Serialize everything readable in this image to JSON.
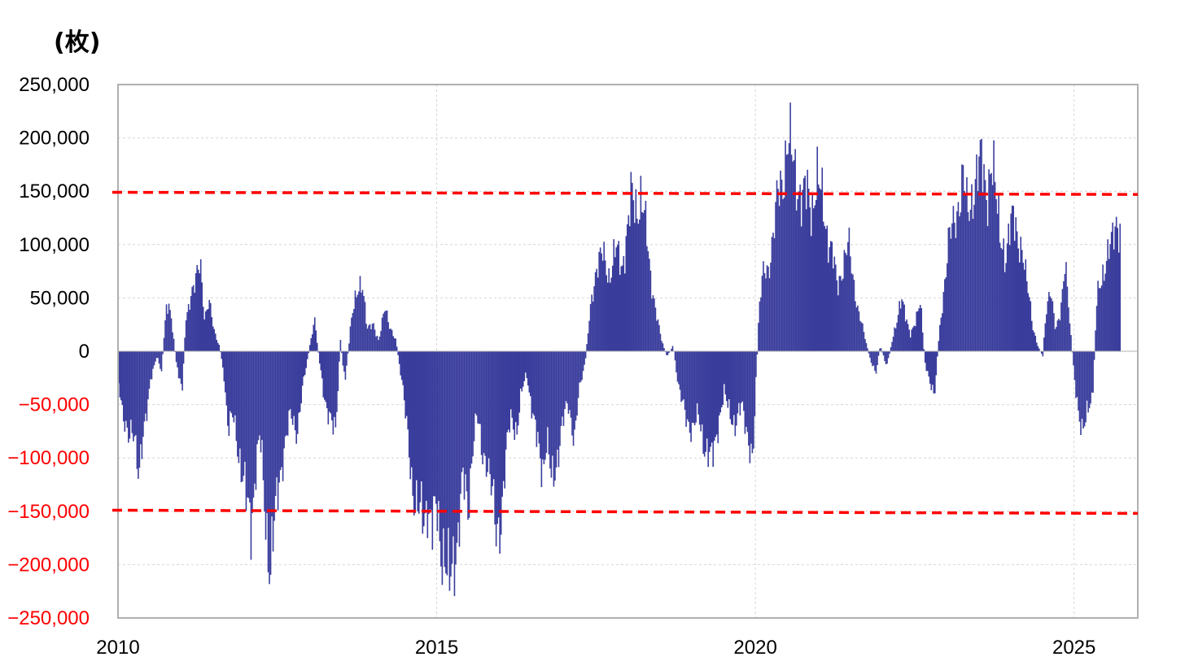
{
  "chart_data": {
    "type": "bar",
    "unit_label": "(枚)",
    "xlim": [
      2010.0,
      2026.0
    ],
    "ylim": [
      -250000,
      250000
    ],
    "x_ticks": [
      2010,
      2015,
      2020,
      2025
    ],
    "x_tick_labels": [
      "2010",
      "2015",
      "2020",
      "2025"
    ],
    "y_ticks": [
      250000,
      200000,
      150000,
      100000,
      50000,
      0,
      -50000,
      -100000,
      -150000,
      -200000,
      -250000
    ],
    "y_tick_labels": [
      "250,000",
      "200,000",
      "150,000",
      "100,000",
      "50,000",
      "0",
      "−50,000",
      "−100,000",
      "−150,000",
      "−200,000",
      "−250,000"
    ],
    "grid": true,
    "bar_color": "#3a3d9c",
    "positive_label_color": "#000000",
    "negative_label_color": "#ff0000",
    "reference_line_color": "#ff0000",
    "reference_lines": [
      {
        "y_start": 149000,
        "y_end": 147000
      },
      {
        "y_start": -149000,
        "y_end": -152000
      }
    ],
    "points": [
      [
        2010.0,
        -30000
      ],
      [
        2010.08,
        -60000
      ],
      [
        2010.15,
        -85000
      ],
      [
        2010.25,
        -75000
      ],
      [
        2010.32,
        -112000
      ],
      [
        2010.42,
        -70000
      ],
      [
        2010.5,
        -25000
      ],
      [
        2010.6,
        -5000
      ],
      [
        2010.67,
        -20000
      ],
      [
        2010.75,
        40000
      ],
      [
        2010.82,
        38000
      ],
      [
        2010.9,
        -10000
      ],
      [
        2011.0,
        -35000
      ],
      [
        2011.05,
        30000
      ],
      [
        2011.12,
        50000
      ],
      [
        2011.2,
        60000
      ],
      [
        2011.28,
        90000
      ],
      [
        2011.35,
        30000
      ],
      [
        2011.42,
        45000
      ],
      [
        2011.5,
        20000
      ],
      [
        2011.58,
        5000
      ],
      [
        2011.65,
        -20000
      ],
      [
        2011.72,
        -75000
      ],
      [
        2011.8,
        -60000
      ],
      [
        2011.9,
        -100000
      ],
      [
        2012.0,
        -140000
      ],
      [
        2012.08,
        -160000
      ],
      [
        2012.15,
        -110000
      ],
      [
        2012.22,
        -80000
      ],
      [
        2012.3,
        -150000
      ],
      [
        2012.38,
        -205000
      ],
      [
        2012.45,
        -160000
      ],
      [
        2012.52,
        -120000
      ],
      [
        2012.6,
        -90000
      ],
      [
        2012.7,
        -60000
      ],
      [
        2012.8,
        -75000
      ],
      [
        2012.9,
        -30000
      ],
      [
        2013.0,
        5000
      ],
      [
        2013.08,
        30000
      ],
      [
        2013.15,
        -10000
      ],
      [
        2013.22,
        -40000
      ],
      [
        2013.3,
        -60000
      ],
      [
        2013.4,
        -80000
      ],
      [
        2013.48,
        10000
      ],
      [
        2013.55,
        -30000
      ],
      [
        2013.65,
        30000
      ],
      [
        2013.75,
        55000
      ],
      [
        2013.82,
        70000
      ],
      [
        2013.9,
        20000
      ],
      [
        2014.0,
        25000
      ],
      [
        2014.08,
        10000
      ],
      [
        2014.18,
        40000
      ],
      [
        2014.25,
        25000
      ],
      [
        2014.35,
        10000
      ],
      [
        2014.45,
        -30000
      ],
      [
        2014.55,
        -90000
      ],
      [
        2014.62,
        -130000
      ],
      [
        2014.7,
        -150000
      ],
      [
        2014.78,
        -160000
      ],
      [
        2014.85,
        -140000
      ],
      [
        2014.92,
        -165000
      ],
      [
        2015.0,
        -150000
      ],
      [
        2015.05,
        -180000
      ],
      [
        2015.12,
        -190000
      ],
      [
        2015.18,
        -225000
      ],
      [
        2015.25,
        -200000
      ],
      [
        2015.32,
        -170000
      ],
      [
        2015.4,
        -120000
      ],
      [
        2015.48,
        -150000
      ],
      [
        2015.55,
        -90000
      ],
      [
        2015.62,
        -60000
      ],
      [
        2015.7,
        -95000
      ],
      [
        2015.78,
        -100000
      ],
      [
        2015.85,
        -130000
      ],
      [
        2015.92,
        -170000
      ],
      [
        2016.0,
        -155000
      ],
      [
        2016.08,
        -100000
      ],
      [
        2016.15,
        -60000
      ],
      [
        2016.25,
        -75000
      ],
      [
        2016.32,
        -40000
      ],
      [
        2016.4,
        -20000
      ],
      [
        2016.5,
        -60000
      ],
      [
        2016.58,
        -90000
      ],
      [
        2016.65,
        -110000
      ],
      [
        2016.72,
        -80000
      ],
      [
        2016.8,
        -130000
      ],
      [
        2016.88,
        -100000
      ],
      [
        2016.95,
        -70000
      ],
      [
        2017.05,
        -50000
      ],
      [
        2017.15,
        -80000
      ],
      [
        2017.22,
        -40000
      ],
      [
        2017.32,
        -10000
      ],
      [
        2017.42,
        50000
      ],
      [
        2017.5,
        80000
      ],
      [
        2017.6,
        90000
      ],
      [
        2017.7,
        70000
      ],
      [
        2017.8,
        95000
      ],
      [
        2017.9,
        80000
      ],
      [
        2018.0,
        120000
      ],
      [
        2018.05,
        145000
      ],
      [
        2018.12,
        135000
      ],
      [
        2018.2,
        145000
      ],
      [
        2018.28,
        110000
      ],
      [
        2018.35,
        70000
      ],
      [
        2018.45,
        30000
      ],
      [
        2018.52,
        10000
      ],
      [
        2018.6,
        -5000
      ],
      [
        2018.7,
        5000
      ],
      [
        2018.8,
        -40000
      ],
      [
        2018.9,
        -60000
      ],
      [
        2019.0,
        -75000
      ],
      [
        2019.1,
        -60000
      ],
      [
        2019.2,
        -90000
      ],
      [
        2019.3,
        -105000
      ],
      [
        2019.4,
        -70000
      ],
      [
        2019.5,
        -40000
      ],
      [
        2019.58,
        -55000
      ],
      [
        2019.68,
        -70000
      ],
      [
        2019.78,
        -50000
      ],
      [
        2019.88,
        -80000
      ],
      [
        2019.95,
        -110000
      ],
      [
        2020.0,
        -30000
      ],
      [
        2020.05,
        40000
      ],
      [
        2020.12,
        75000
      ],
      [
        2020.2,
        80000
      ],
      [
        2020.28,
        110000
      ],
      [
        2020.35,
        150000
      ],
      [
        2020.42,
        165000
      ],
      [
        2020.5,
        195000
      ],
      [
        2020.58,
        180000
      ],
      [
        2020.65,
        160000
      ],
      [
        2020.72,
        140000
      ],
      [
        2020.8,
        150000
      ],
      [
        2020.88,
        135000
      ],
      [
        2020.95,
        160000
      ],
      [
        2021.05,
        140000
      ],
      [
        2021.12,
        110000
      ],
      [
        2021.2,
        90000
      ],
      [
        2021.28,
        60000
      ],
      [
        2021.38,
        85000
      ],
      [
        2021.45,
        100000
      ],
      [
        2021.52,
        70000
      ],
      [
        2021.6,
        40000
      ],
      [
        2021.7,
        15000
      ],
      [
        2021.8,
        -10000
      ],
      [
        2021.88,
        -20000
      ],
      [
        2021.95,
        5000
      ],
      [
        2022.05,
        -15000
      ],
      [
        2022.12,
        5000
      ],
      [
        2022.2,
        25000
      ],
      [
        2022.28,
        55000
      ],
      [
        2022.35,
        30000
      ],
      [
        2022.42,
        15000
      ],
      [
        2022.5,
        30000
      ],
      [
        2022.58,
        45000
      ],
      [
        2022.65,
        -10000
      ],
      [
        2022.72,
        -30000
      ],
      [
        2022.8,
        -40000
      ],
      [
        2022.88,
        20000
      ],
      [
        2022.95,
        60000
      ],
      [
        2023.02,
        100000
      ],
      [
        2023.1,
        120000
      ],
      [
        2023.18,
        140000
      ],
      [
        2023.25,
        160000
      ],
      [
        2023.32,
        130000
      ],
      [
        2023.4,
        150000
      ],
      [
        2023.48,
        165000
      ],
      [
        2023.55,
        180000
      ],
      [
        2023.62,
        150000
      ],
      [
        2023.7,
        170000
      ],
      [
        2023.78,
        140000
      ],
      [
        2023.85,
        110000
      ],
      [
        2023.92,
        80000
      ],
      [
        2024.0,
        120000
      ],
      [
        2024.05,
        140000
      ],
      [
        2024.12,
        100000
      ],
      [
        2024.2,
        80000
      ],
      [
        2024.28,
        60000
      ],
      [
        2024.35,
        20000
      ],
      [
        2024.42,
        5000
      ],
      [
        2024.5,
        -5000
      ],
      [
        2024.55,
        40000
      ],
      [
        2024.62,
        55000
      ],
      [
        2024.7,
        20000
      ],
      [
        2024.78,
        40000
      ],
      [
        2024.85,
        80000
      ],
      [
        2024.92,
        30000
      ],
      [
        2025.0,
        -30000
      ],
      [
        2025.05,
        -55000
      ],
      [
        2025.12,
        -70000
      ],
      [
        2025.2,
        -60000
      ],
      [
        2025.28,
        -45000
      ],
      [
        2025.35,
        50000
      ],
      [
        2025.42,
        70000
      ],
      [
        2025.5,
        85000
      ],
      [
        2025.58,
        100000
      ],
      [
        2025.65,
        125000
      ],
      [
        2025.72,
        115000
      ]
    ]
  }
}
